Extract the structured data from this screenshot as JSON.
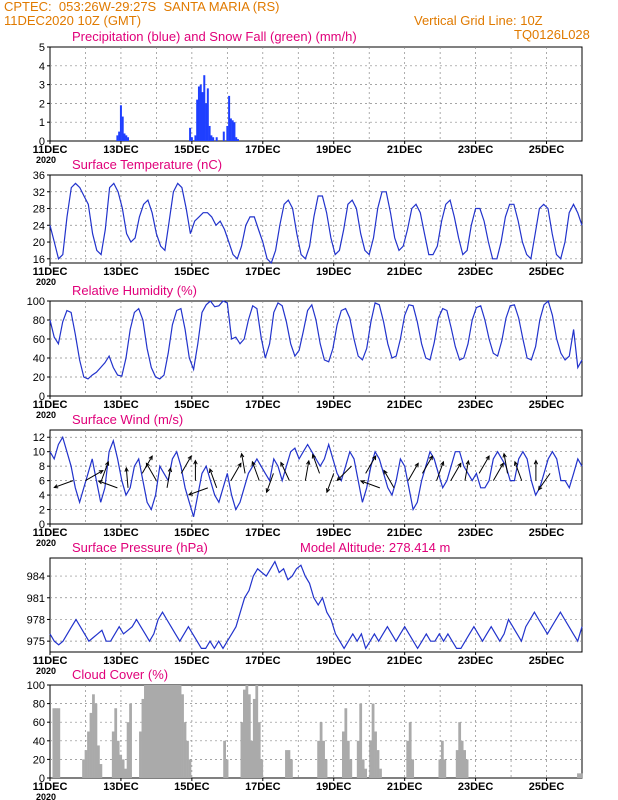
{
  "colors": {
    "header": "#e07a00",
    "title": "#e0007a",
    "precip": "#1f3fff",
    "snow": "#00b000",
    "line": "#2233cc",
    "wind_arrow": "#000000",
    "cloud": "#aaaaaa"
  },
  "header": {
    "station": "CPTEC:  053:26W-29:27S  SANTA MARIA (RS)",
    "init_time": "11DEC2020 10Z (GMT)",
    "grid_note": "Vertical Grid Line: 10Z",
    "model_id": "TQ0126L028"
  },
  "x_tick_labels": [
    "11DEC",
    "13DEC",
    "15DEC",
    "17DEC",
    "19DEC",
    "21DEC",
    "23DEC",
    "25DEC"
  ],
  "year_label": "2020",
  "chart_data": [
    {
      "id": "precip",
      "type": "bar",
      "title": "Precipitation (blue) and Snow Fall (green) (mm/h)",
      "ylim": [
        0,
        5
      ],
      "yticks": [
        0,
        1,
        2,
        3,
        4,
        5
      ],
      "xlim": [
        0,
        15
      ],
      "grid": true,
      "series": [
        {
          "name": "blue",
          "x": [
            1.9,
            1.95,
            2.0,
            2.05,
            2.1,
            2.15,
            2.2,
            3.95,
            4.0,
            4.1,
            4.15,
            4.2,
            4.25,
            4.3,
            4.35,
            4.4,
            4.45,
            4.5,
            4.55,
            4.6,
            4.7,
            4.9,
            5.0,
            5.05,
            5.1,
            5.15,
            5.2,
            5.25,
            5.3
          ],
          "values": [
            0.3,
            0.5,
            1.9,
            1.3,
            0.4,
            0.3,
            0.2,
            0.7,
            0.2,
            0.3,
            2.2,
            2.9,
            3.0,
            2.6,
            3.5,
            2.0,
            2.8,
            0.8,
            0.3,
            0.2,
            0.2,
            0.5,
            0.8,
            2.4,
            1.2,
            1.1,
            1.0,
            0.2,
            0.1
          ]
        }
      ]
    },
    {
      "id": "temp",
      "type": "line",
      "title": "Surface Temperature (nC)",
      "ylim": [
        15,
        36
      ],
      "yticks": [
        16,
        20,
        24,
        28,
        32,
        36
      ],
      "xlim": [
        0,
        15
      ],
      "grid": true,
      "series": [
        {
          "name": "temperature",
          "values": [
            24,
            20,
            16,
            17,
            26,
            33,
            34,
            33,
            31,
            29,
            22,
            18,
            17,
            23,
            33,
            34,
            32,
            28,
            22,
            20,
            21,
            26,
            29,
            30,
            27,
            22,
            19,
            18,
            25,
            32,
            34,
            33,
            28,
            22,
            25,
            26,
            27,
            27,
            26,
            24,
            25,
            23,
            20,
            17,
            16,
            19,
            24,
            26,
            26,
            23,
            20,
            16,
            15,
            18,
            24,
            29,
            30,
            28,
            22,
            17,
            16,
            19,
            26,
            31,
            31,
            27,
            21,
            17,
            18,
            23,
            29,
            30,
            28,
            22,
            18,
            17,
            21,
            28,
            32,
            32,
            27,
            21,
            18,
            19,
            23,
            28,
            29,
            27,
            22,
            17,
            17,
            19,
            25,
            29,
            30,
            26,
            21,
            17,
            18,
            24,
            28,
            28,
            25,
            20,
            16,
            16,
            20,
            26,
            29,
            29,
            25,
            20,
            17,
            16,
            22,
            28,
            29,
            28,
            22,
            17,
            16,
            20,
            27,
            29,
            27,
            24
          ]
        }
      ]
    },
    {
      "id": "rh",
      "type": "line",
      "title": "Relative Humidity (%)",
      "ylim": [
        0,
        100
      ],
      "yticks": [
        0,
        20,
        40,
        60,
        80,
        100
      ],
      "xlim": [
        0,
        15
      ],
      "grid": true,
      "series": [
        {
          "name": "humidity",
          "values": [
            80,
            62,
            55,
            78,
            90,
            88,
            65,
            38,
            20,
            18,
            22,
            25,
            30,
            35,
            42,
            30,
            22,
            21,
            40,
            70,
            88,
            92,
            80,
            50,
            30,
            20,
            18,
            22,
            45,
            75,
            90,
            92,
            70,
            40,
            28,
            55,
            88,
            96,
            100,
            94,
            95,
            100,
            98,
            60,
            62,
            55,
            60,
            80,
            95,
            92,
            62,
            40,
            55,
            88,
            98,
            95,
            78,
            55,
            42,
            48,
            68,
            90,
            96,
            80,
            55,
            38,
            36,
            50,
            75,
            90,
            92,
            82,
            60,
            42,
            38,
            50,
            78,
            98,
            96,
            78,
            55,
            40,
            42,
            60,
            85,
            96,
            95,
            78,
            55,
            40,
            38,
            56,
            82,
            92,
            90,
            72,
            52,
            38,
            40,
            55,
            80,
            93,
            95,
            80,
            60,
            45,
            42,
            58,
            82,
            95,
            96,
            82,
            60,
            40,
            38,
            52,
            80,
            96,
            100,
            85,
            60,
            45,
            38,
            42,
            70,
            30,
            38
          ]
        }
      ]
    },
    {
      "id": "wind",
      "type": "line",
      "title": "Surface Wind (m/s)",
      "ylim": [
        0,
        13
      ],
      "yticks": [
        0,
        2,
        4,
        6,
        8,
        10,
        12
      ],
      "xlim": [
        0,
        15
      ],
      "grid": true,
      "series": [
        {
          "name": "wind speed",
          "values": [
            10,
            9,
            11,
            12,
            10,
            8,
            5,
            3,
            5,
            7,
            9,
            6,
            3,
            5,
            10,
            11.5,
            9,
            6,
            4,
            5,
            8,
            9,
            6,
            3,
            2,
            4,
            8,
            7,
            6,
            9,
            10,
            8,
            5,
            3,
            1,
            4,
            7,
            8,
            6,
            4,
            3,
            5,
            7,
            4,
            2,
            3,
            5,
            7,
            8,
            9,
            8,
            7,
            6,
            9,
            8,
            6,
            8,
            10,
            10.5,
            9,
            10,
            11,
            10,
            9,
            8,
            9,
            11,
            9,
            7,
            6,
            8,
            10,
            9,
            6,
            3,
            5,
            8,
            10,
            9,
            7,
            5,
            4,
            6,
            9,
            8,
            5,
            2,
            3,
            6,
            8,
            10,
            9,
            7,
            5,
            6,
            8,
            10,
            10,
            8,
            7,
            6,
            7,
            5,
            5,
            6,
            9,
            10,
            9,
            8,
            6,
            6,
            9,
            10,
            9,
            6,
            4,
            5,
            7,
            9,
            10,
            9,
            6,
            6,
            5,
            7,
            9,
            8
          ]
        }
      ],
      "arrows": [
        {
          "x": 0.65,
          "speed": 6,
          "dir_deg": 200
        },
        {
          "x": 1.0,
          "speed": 6,
          "dir_deg": 30
        },
        {
          "x": 1.45,
          "speed": 6,
          "dir_deg": 70
        },
        {
          "x": 1.9,
          "speed": 5,
          "dir_deg": 160
        },
        {
          "x": 2.2,
          "speed": 5,
          "dir_deg": 95
        },
        {
          "x": 2.6,
          "speed": 7,
          "dir_deg": 60
        },
        {
          "x": 3.0,
          "speed": 6,
          "dir_deg": 120
        },
        {
          "x": 3.3,
          "speed": 5,
          "dir_deg": 80
        },
        {
          "x": 3.7,
          "speed": 7,
          "dir_deg": 60
        },
        {
          "x": 4.1,
          "speed": 6,
          "dir_deg": 90
        },
        {
          "x": 4.45,
          "speed": 5,
          "dir_deg": 200
        },
        {
          "x": 4.7,
          "speed": 5,
          "dir_deg": 110
        },
        {
          "x": 5.1,
          "speed": 6,
          "dir_deg": 60
        },
        {
          "x": 5.5,
          "speed": 7,
          "dir_deg": 100
        },
        {
          "x": 5.9,
          "speed": 6,
          "dir_deg": 110
        },
        {
          "x": 6.3,
          "speed": 7,
          "dir_deg": 250
        },
        {
          "x": 6.75,
          "speed": 6,
          "dir_deg": 115
        },
        {
          "x": 7.2,
          "speed": 6,
          "dir_deg": 80
        },
        {
          "x": 7.6,
          "speed": 7,
          "dir_deg": 110
        },
        {
          "x": 8.0,
          "speed": 7,
          "dir_deg": 250
        },
        {
          "x": 8.5,
          "speed": 8,
          "dir_deg": 225
        },
        {
          "x": 8.9,
          "speed": 7,
          "dir_deg": 60
        },
        {
          "x": 9.3,
          "speed": 5,
          "dir_deg": 160
        },
        {
          "x": 9.7,
          "speed": 5,
          "dir_deg": 120
        },
        {
          "x": 10.1,
          "speed": 6,
          "dir_deg": 60
        },
        {
          "x": 10.5,
          "speed": 7,
          "dir_deg": 60
        },
        {
          "x": 10.9,
          "speed": 6,
          "dir_deg": 70
        },
        {
          "x": 11.3,
          "speed": 6,
          "dir_deg": 60
        },
        {
          "x": 11.7,
          "speed": 6,
          "dir_deg": 80
        },
        {
          "x": 12.1,
          "speed": 7,
          "dir_deg": 60
        },
        {
          "x": 12.5,
          "speed": 6,
          "dir_deg": 60
        },
        {
          "x": 12.9,
          "speed": 7,
          "dir_deg": 100
        },
        {
          "x": 13.3,
          "speed": 6,
          "dir_deg": 110
        },
        {
          "x": 13.7,
          "speed": 6,
          "dir_deg": 90
        },
        {
          "x": 14.1,
          "speed": 7,
          "dir_deg": 235
        }
      ]
    },
    {
      "id": "pressure",
      "type": "line",
      "title": "Surface Pressure (hPa)",
      "subtitle": "Model Altitude: 278.414  m",
      "ylim": [
        973.5,
        986.5
      ],
      "yticks": [
        975,
        978,
        981,
        984
      ],
      "xlim": [
        0,
        15
      ],
      "grid": true,
      "series": [
        {
          "name": "pressure",
          "values": [
            976,
            975,
            974.5,
            975,
            976,
            977,
            978,
            977,
            976,
            975,
            975.5,
            976,
            976.5,
            975,
            975,
            976,
            977,
            976,
            976.5,
            977,
            978,
            977,
            976,
            975,
            976,
            978,
            979,
            978,
            977,
            976,
            975,
            976,
            977,
            976,
            975,
            974,
            974,
            975,
            974,
            975,
            974,
            975,
            976,
            977,
            979,
            981,
            982,
            984,
            985,
            984.5,
            984,
            985,
            986,
            984.5,
            985,
            983.5,
            984,
            985,
            985.5,
            984,
            983,
            981,
            980,
            981,
            979,
            978,
            976,
            975,
            974,
            975,
            976,
            975,
            976,
            974,
            975,
            976,
            975,
            976,
            977,
            976,
            975,
            976,
            977,
            976,
            975,
            974,
            975,
            976,
            975,
            975,
            976,
            975,
            976,
            975,
            974,
            974,
            975,
            976,
            977,
            976,
            975,
            976,
            977,
            976,
            975,
            976,
            978,
            977,
            976,
            975,
            977,
            978,
            979,
            978,
            977,
            976,
            977,
            978,
            979,
            978,
            977,
            976,
            975,
            977
          ]
        }
      ]
    },
    {
      "id": "cloud",
      "type": "bar",
      "title": "Cloud Cover (%)",
      "ylim": [
        0,
        100
      ],
      "yticks": [
        0,
        20,
        40,
        60,
        80,
        100
      ],
      "xlim": [
        0,
        15
      ],
      "grid": true,
      "series": [
        {
          "name": "cloud cover",
          "values": [
            0,
            75,
            75,
            75,
            0,
            0,
            0,
            0,
            0,
            0,
            0,
            0,
            0,
            20,
            30,
            50,
            70,
            90,
            80,
            35,
            15,
            0,
            0,
            0,
            0,
            50,
            75,
            40,
            25,
            20,
            10,
            60,
            80,
            0,
            0,
            0,
            50,
            85,
            100,
            100,
            100,
            100,
            100,
            100,
            100,
            100,
            100,
            100,
            100,
            100,
            100,
            100,
            100,
            90,
            60,
            40,
            20,
            0,
            0,
            0,
            0,
            0,
            0,
            0,
            0,
            0,
            0,
            0,
            0,
            0,
            40,
            20,
            0,
            0,
            0,
            0,
            0,
            60,
            95,
            100,
            90,
            40,
            85,
            100,
            60,
            20,
            0,
            0,
            0,
            0,
            0,
            0,
            0,
            0,
            0,
            30,
            30,
            20,
            0,
            0,
            0,
            0,
            0,
            0,
            0,
            0,
            0,
            0,
            40,
            60,
            40,
            20,
            0,
            0,
            0,
            0,
            0,
            0,
            50,
            75,
            40,
            20,
            0,
            0,
            40,
            80,
            20,
            10,
            0,
            40,
            80,
            50,
            30,
            10,
            0,
            0,
            0,
            0,
            0,
            0,
            0,
            0,
            0,
            0,
            40,
            60,
            20,
            0,
            0,
            0,
            0,
            0,
            0,
            0,
            0,
            0,
            0,
            20,
            40,
            20,
            0,
            0,
            0,
            0,
            30,
            60,
            40,
            30,
            20,
            0,
            0,
            0,
            0,
            0,
            0,
            0,
            0,
            0,
            0,
            0,
            0,
            0,
            0,
            0,
            0,
            0,
            0,
            0,
            0,
            0,
            0,
            0,
            0,
            0,
            0,
            0,
            0,
            0,
            0,
            0,
            0,
            0,
            0,
            0,
            0,
            0,
            0,
            0,
            0,
            0,
            0,
            0,
            0,
            5,
            5
          ]
        }
      ]
    }
  ]
}
